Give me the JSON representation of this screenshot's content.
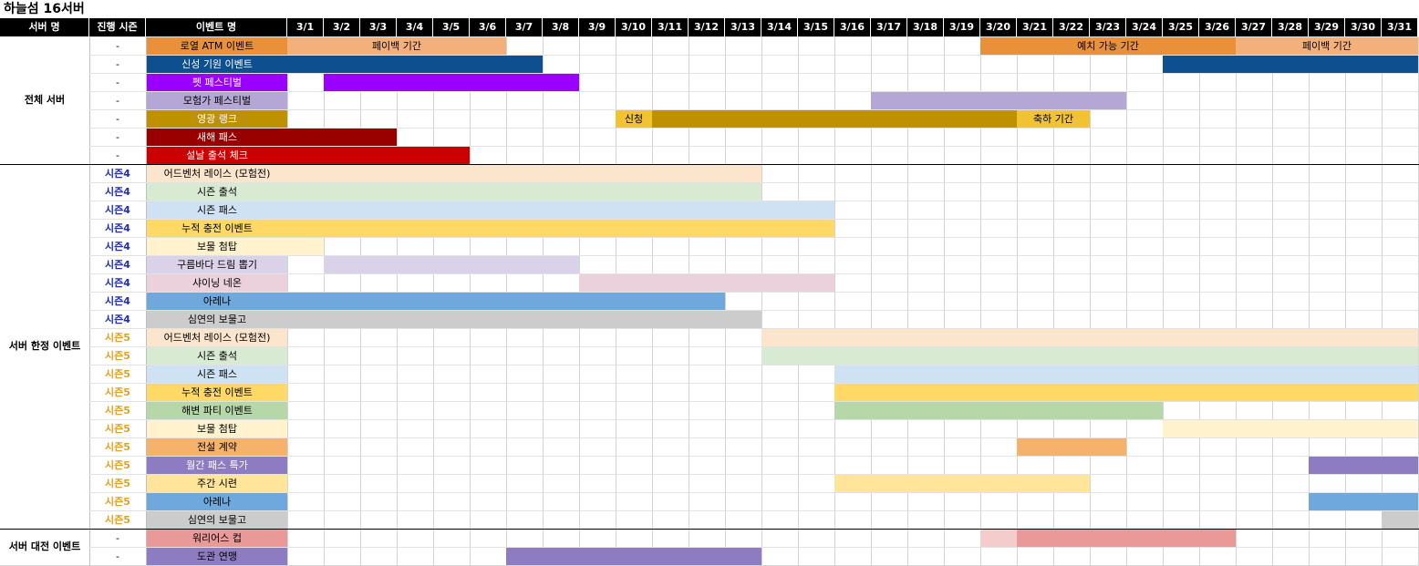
{
  "title": "하늘섬 16서버",
  "headers": {
    "server": "서버 명",
    "season": "진행 시즌",
    "event": "이벤트 명"
  },
  "days": [
    "3/1",
    "3/2",
    "3/3",
    "3/4",
    "3/5",
    "3/6",
    "3/7",
    "3/8",
    "3/9",
    "3/10",
    "3/11",
    "3/12",
    "3/13",
    "3/14",
    "3/15",
    "3/16",
    "3/17",
    "3/18",
    "3/19",
    "3/20",
    "3/21",
    "3/22",
    "3/23",
    "3/24",
    "3/25",
    "3/26",
    "3/27",
    "3/28",
    "3/29",
    "3/30",
    "3/31"
  ],
  "groups": [
    {
      "label": "전체 서버",
      "start": 0,
      "count": 7
    },
    {
      "label": "서버 한정 이벤트",
      "start": 7,
      "count": 20
    },
    {
      "label": "서버 대전 이벤트",
      "start": 27,
      "count": 2
    }
  ],
  "season_colors": {
    "시즌4": "#1f2fa8",
    "시즌5": "#e0a020",
    "-": "#000000"
  },
  "rows": [
    {
      "season": "-",
      "name": "로열 ATM 이벤트",
      "color": "#e8913a",
      "bars": [
        {
          "s": 1,
          "e": 6,
          "color": "#f4b07a",
          "label": "페이백 기간"
        },
        {
          "s": 20,
          "e": 26,
          "color": "#e8913a",
          "label": "예치 가능 기간"
        },
        {
          "s": 27,
          "e": 31,
          "color": "#f4b07a",
          "label": "페이백 기간"
        }
      ]
    },
    {
      "season": "-",
      "name": "신성 기원 이벤트",
      "color": "#0d4f8f",
      "textColor": "#ffffff",
      "bars": [
        {
          "s": 1,
          "e": 7,
          "color": "#0d4f8f",
          "label": ""
        },
        {
          "s": 25,
          "e": 31,
          "color": "#0d4f8f",
          "label": ""
        }
      ]
    },
    {
      "season": "-",
      "name": "펫 페스티벌",
      "color": "#9900ff",
      "textColor": "#ffffff",
      "bars": [
        {
          "s": 2,
          "e": 8,
          "color": "#9900ff",
          "label": ""
        }
      ]
    },
    {
      "season": "-",
      "name": "모험가 페스티벌",
      "color": "#b4a7d6",
      "bars": [
        {
          "s": 17,
          "e": 23,
          "color": "#b4a7d6",
          "label": ""
        }
      ]
    },
    {
      "season": "-",
      "name": "영광 랭크",
      "color": "#bf9000",
      "textColor": "#ffffff",
      "bars": [
        {
          "s": 10,
          "e": 10,
          "color": "#f1c232",
          "label": "신청"
        },
        {
          "s": 11,
          "e": 20,
          "color": "#bf9000",
          "label": ""
        },
        {
          "s": 21,
          "e": 22,
          "color": "#f1c232",
          "label": "축하 기간"
        }
      ]
    },
    {
      "season": "-",
      "name": "새해 패스",
      "color": "#990000",
      "textColor": "#ffffff",
      "bars": [
        {
          "s": 1,
          "e": 3,
          "color": "#990000",
          "label": ""
        }
      ]
    },
    {
      "season": "-",
      "name": "설날 출석 체크",
      "color": "#cc0000",
      "textColor": "#ffffff",
      "bars": [
        {
          "s": 1,
          "e": 5,
          "color": "#cc0000",
          "label": ""
        }
      ]
    },
    {
      "season": "시즌4",
      "name": "어드벤처 레이스 (모험전)",
      "color": "#fce5cd",
      "bars": [
        {
          "s": 1,
          "e": 13,
          "color": "#fce5cd",
          "label": ""
        }
      ]
    },
    {
      "season": "시즌4",
      "name": "시즌 출석",
      "color": "#d9ead3",
      "bars": [
        {
          "s": 1,
          "e": 13,
          "color": "#d9ead3",
          "label": ""
        }
      ]
    },
    {
      "season": "시즌4",
      "name": "시즌 패스",
      "color": "#cfe2f3",
      "bars": [
        {
          "s": 1,
          "e": 15,
          "color": "#cfe2f3",
          "label": ""
        }
      ]
    },
    {
      "season": "시즌4",
      "name": "누적 충전 이벤트",
      "color": "#ffd966",
      "bars": [
        {
          "s": 1,
          "e": 15,
          "color": "#ffd966",
          "label": ""
        }
      ]
    },
    {
      "season": "시즌4",
      "name": "보물 첨탑",
      "color": "#fff2cc",
      "bars": [
        {
          "s": 1,
          "e": 1,
          "color": "#fff2cc",
          "label": ""
        }
      ]
    },
    {
      "season": "시즌4",
      "name": "구름바다 드림 뽑기",
      "color": "#d9d2e9",
      "bars": [
        {
          "s": 2,
          "e": 8,
          "color": "#d9d2e9",
          "label": ""
        }
      ]
    },
    {
      "season": "시즌4",
      "name": "샤이닝 네온",
      "color": "#ead1dc",
      "bars": [
        {
          "s": 9,
          "e": 15,
          "color": "#ead1dc",
          "label": ""
        }
      ]
    },
    {
      "season": "시즌4",
      "name": "아레나",
      "color": "#6fa8dc",
      "bars": [
        {
          "s": 1,
          "e": 12,
          "color": "#6fa8dc",
          "label": ""
        }
      ]
    },
    {
      "season": "시즌4",
      "name": "심연의 보물고",
      "color": "#cccccc",
      "bars": [
        {
          "s": 1,
          "e": 13,
          "color": "#cccccc",
          "label": ""
        }
      ]
    },
    {
      "season": "시즌5",
      "name": "어드벤처 레이스 (모험전)",
      "color": "#fce5cd",
      "bars": [
        {
          "s": 14,
          "e": 31,
          "color": "#fce5cd",
          "label": ""
        }
      ]
    },
    {
      "season": "시즌5",
      "name": "시즌 출석",
      "color": "#d9ead3",
      "bars": [
        {
          "s": 14,
          "e": 31,
          "color": "#d9ead3",
          "label": ""
        }
      ]
    },
    {
      "season": "시즌5",
      "name": "시즌 패스",
      "color": "#cfe2f3",
      "bars": [
        {
          "s": 16,
          "e": 31,
          "color": "#cfe2f3",
          "label": ""
        }
      ]
    },
    {
      "season": "시즌5",
      "name": "누적 충전 이벤트",
      "color": "#ffd966",
      "bars": [
        {
          "s": 16,
          "e": 31,
          "color": "#ffd966",
          "label": ""
        }
      ]
    },
    {
      "season": "시즌5",
      "name": "해변 파티 이벤트",
      "color": "#b6d7a8",
      "bars": [
        {
          "s": 16,
          "e": 24,
          "color": "#b6d7a8",
          "label": ""
        }
      ]
    },
    {
      "season": "시즌5",
      "name": "보물 첨탑",
      "color": "#fff2cc",
      "bars": [
        {
          "s": 25,
          "e": 31,
          "color": "#fff2cc",
          "label": ""
        }
      ]
    },
    {
      "season": "시즌5",
      "name": "전설 계약",
      "color": "#f6b26b",
      "bars": [
        {
          "s": 21,
          "e": 23,
          "color": "#f6b26b",
          "label": ""
        }
      ]
    },
    {
      "season": "시즌5",
      "name": "월간 패스 특가",
      "color": "#8e7cc3",
      "textColor": "#ffffff",
      "bars": [
        {
          "s": 29,
          "e": 31,
          "color": "#8e7cc3",
          "label": ""
        }
      ]
    },
    {
      "season": "시즌5",
      "name": "주간 시련",
      "color": "#ffe599",
      "bars": [
        {
          "s": 16,
          "e": 22,
          "color": "#ffe599",
          "label": ""
        }
      ]
    },
    {
      "season": "시즌5",
      "name": "아레나",
      "color": "#6fa8dc",
      "bars": [
        {
          "s": 29,
          "e": 31,
          "color": "#6fa8dc",
          "label": ""
        }
      ]
    },
    {
      "season": "시즌5",
      "name": "심연의 보물고",
      "color": "#cccccc",
      "bars": [
        {
          "s": 31,
          "e": 31,
          "color": "#cccccc",
          "label": ""
        }
      ]
    },
    {
      "season": "-",
      "name": "워리어스 컵",
      "color": "#ea9999",
      "bars": [
        {
          "s": 20,
          "e": 20,
          "color": "#f4cccc",
          "label": ""
        },
        {
          "s": 21,
          "e": 26,
          "color": "#ea9999",
          "label": ""
        }
      ]
    },
    {
      "season": "-",
      "name": "도관 연맹",
      "color": "#8e7cc3",
      "bars": [
        {
          "s": 7,
          "e": 13,
          "color": "#8e7cc3",
          "label": ""
        }
      ]
    }
  ]
}
